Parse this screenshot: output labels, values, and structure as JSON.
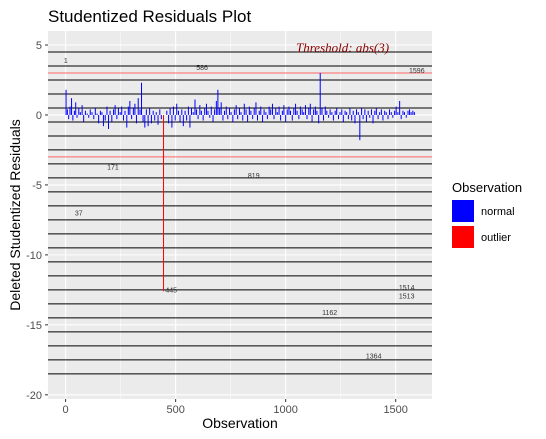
{
  "chart_data": {
    "type": "bar",
    "title": "Studentized Residuals Plot",
    "xlabel": "Observation",
    "ylabel": "Deleted Studentized Residuals",
    "xlim": [
      -80,
      1665
    ],
    "ylim": [
      -20.3,
      6.0
    ],
    "xticks": [
      0,
      500,
      1000,
      1500
    ],
    "yticks": [
      -20,
      -15,
      -10,
      -5,
      0,
      5
    ],
    "grid": true,
    "threshold": {
      "label": "Threshold: abs(3)",
      "values": [
        3,
        -3
      ],
      "color": "#ff6666"
    },
    "hlines": [
      4.5,
      3.5,
      2.5,
      1.5,
      0.5,
      -0.5,
      -1.5,
      -2.5,
      -3.5,
      -4.5,
      -5.5,
      -6.5,
      -7.5,
      -8.5,
      -9.5,
      -10.5,
      -11.5,
      -12.5,
      -13.5,
      -14.5,
      -15.5,
      -16.5,
      -17.5,
      -18.5
    ],
    "series": [
      {
        "name": "normal",
        "color": "#0000ff",
        "points": [
          [
            2,
            1.8
          ],
          [
            8,
            0.4
          ],
          [
            14,
            -0.3
          ],
          [
            20,
            0.6
          ],
          [
            27,
            1.2
          ],
          [
            33,
            -0.4
          ],
          [
            40,
            0.3
          ],
          [
            46,
            0.9
          ],
          [
            52,
            -0.2
          ],
          [
            60,
            0.5
          ],
          [
            67,
            0.2
          ],
          [
            75,
            0.7
          ],
          [
            82,
            -0.5
          ],
          [
            90,
            0.3
          ],
          [
            98,
            0.1
          ],
          [
            105,
            -0.2
          ],
          [
            112,
            0.4
          ],
          [
            120,
            0.2
          ],
          [
            128,
            -0.3
          ],
          [
            135,
            0.5
          ],
          [
            143,
            0.1
          ],
          [
            150,
            -0.6
          ],
          [
            158,
            0.3
          ],
          [
            165,
            0.2
          ],
          [
            172,
            -0.8
          ],
          [
            180,
            -0.4
          ],
          [
            188,
            0.6
          ],
          [
            195,
            -1.0
          ],
          [
            202,
            0.3
          ],
          [
            210,
            -0.5
          ],
          [
            218,
            0.4
          ],
          [
            225,
            0.7
          ],
          [
            233,
            -0.3
          ],
          [
            240,
            0.5
          ],
          [
            248,
            0.2
          ],
          [
            255,
            0.6
          ],
          [
            263,
            -0.4
          ],
          [
            270,
            0.3
          ],
          [
            278,
            -0.9
          ],
          [
            285,
            0.6
          ],
          [
            292,
            1.0
          ],
          [
            300,
            -0.3
          ],
          [
            308,
            0.5
          ],
          [
            315,
            0.8
          ],
          [
            322,
            -0.6
          ],
          [
            330,
            1.2
          ],
          [
            338,
            0.4
          ],
          [
            345,
            2.3
          ],
          [
            352,
            -0.5
          ],
          [
            360,
            -0.9
          ],
          [
            367,
            0.4
          ],
          [
            375,
            -0.8
          ],
          [
            382,
            0.5
          ],
          [
            390,
            -0.6
          ],
          [
            398,
            0.3
          ],
          [
            405,
            -0.4
          ],
          [
            412,
            0.2
          ],
          [
            420,
            -0.7
          ],
          [
            428,
            0.4
          ],
          [
            435,
            -0.3
          ],
          [
            460,
            0.3
          ],
          [
            468,
            -0.6
          ],
          [
            475,
            0.5
          ],
          [
            483,
            -0.9
          ],
          [
            490,
            0.6
          ],
          [
            498,
            -0.4
          ],
          [
            505,
            0.8
          ],
          [
            513,
            0.3
          ],
          [
            520,
            -0.5
          ],
          [
            528,
            0.4
          ],
          [
            535,
            -0.8
          ],
          [
            543,
            0.3
          ],
          [
            550,
            -0.4
          ],
          [
            558,
            0.6
          ],
          [
            565,
            -0.9
          ],
          [
            572,
            0.5
          ],
          [
            580,
            0.2
          ],
          [
            588,
            1.1
          ],
          [
            595,
            0.4
          ],
          [
            602,
            -0.3
          ],
          [
            610,
            0.7
          ],
          [
            617,
            0.3
          ],
          [
            625,
            -0.4
          ],
          [
            632,
            0.5
          ],
          [
            640,
            0.8
          ],
          [
            647,
            0.3
          ],
          [
            655,
            -0.2
          ],
          [
            662,
            0.6
          ],
          [
            670,
            -0.5
          ],
          [
            677,
            0.4
          ],
          [
            685,
            1.0
          ],
          [
            692,
            1.8
          ],
          [
            700,
            0.5
          ],
          [
            707,
            0.9
          ],
          [
            715,
            -0.4
          ],
          [
            722,
            0.3
          ],
          [
            730,
            0.6
          ],
          [
            737,
            -0.3
          ],
          [
            745,
            0.5
          ],
          [
            752,
            0.2
          ],
          [
            760,
            -0.5
          ],
          [
            767,
            0.4
          ],
          [
            775,
            0.7
          ],
          [
            782,
            -0.3
          ],
          [
            790,
            0.5
          ],
          [
            797,
            0.2
          ],
          [
            805,
            -0.4
          ],
          [
            812,
            0.8
          ],
          [
            820,
            0.4
          ],
          [
            827,
            -0.5
          ],
          [
            835,
            0.6
          ],
          [
            842,
            0.3
          ],
          [
            850,
            -0.3
          ],
          [
            857,
            0.5
          ],
          [
            865,
            0.9
          ],
          [
            872,
            -0.4
          ],
          [
            880,
            0.3
          ],
          [
            887,
            0.6
          ],
          [
            895,
            -0.5
          ],
          [
            902,
            0.4
          ],
          [
            910,
            0.2
          ],
          [
            917,
            -0.3
          ],
          [
            925,
            0.6
          ],
          [
            932,
            0.4
          ],
          [
            940,
            0.8
          ],
          [
            947,
            -0.3
          ],
          [
            955,
            0.5
          ],
          [
            962,
            0.2
          ],
          [
            970,
            0.6
          ],
          [
            977,
            -0.4
          ],
          [
            985,
            0.3
          ],
          [
            992,
            0.7
          ],
          [
            1000,
            -0.5
          ],
          [
            1007,
            0.4
          ],
          [
            1015,
            0.6
          ],
          [
            1022,
            0.3
          ],
          [
            1030,
            -0.4
          ],
          [
            1037,
            0.5
          ],
          [
            1045,
            0.8
          ],
          [
            1052,
            0.3
          ],
          [
            1060,
            -0.3
          ],
          [
            1067,
            0.6
          ],
          [
            1075,
            0.4
          ],
          [
            1082,
            0.2
          ],
          [
            1090,
            0.7
          ],
          [
            1097,
            -0.3
          ],
          [
            1105,
            0.5
          ],
          [
            1112,
            0.8
          ],
          [
            1120,
            -0.5
          ],
          [
            1127,
            0.4
          ],
          [
            1135,
            0.6
          ],
          [
            1142,
            0.3
          ],
          [
            1150,
            -0.6
          ],
          [
            1157,
            3.0
          ],
          [
            1165,
            0.5
          ],
          [
            1172,
            -0.4
          ],
          [
            1180,
            0.6
          ],
          [
            1187,
            0.3
          ],
          [
            1195,
            -0.2
          ],
          [
            1202,
            0.4
          ],
          [
            1210,
            0.2
          ],
          [
            1217,
            -0.4
          ],
          [
            1225,
            0.3
          ],
          [
            1232,
            0.5
          ],
          [
            1240,
            -0.3
          ],
          [
            1247,
            0.2
          ],
          [
            1255,
            0.4
          ],
          [
            1262,
            -0.5
          ],
          [
            1270,
            0.3
          ],
          [
            1277,
            0.2
          ],
          [
            1285,
            -0.3
          ],
          [
            1292,
            0.5
          ],
          [
            1300,
            -0.4
          ],
          [
            1307,
            0.3
          ],
          [
            1315,
            -0.6
          ],
          [
            1322,
            0.4
          ],
          [
            1330,
            0.2
          ],
          [
            1337,
            -1.8
          ],
          [
            1345,
            0.5
          ],
          [
            1352,
            -0.3
          ],
          [
            1360,
            0.4
          ],
          [
            1367,
            -0.5
          ],
          [
            1375,
            0.3
          ],
          [
            1382,
            -0.2
          ],
          [
            1390,
            0.4
          ],
          [
            1397,
            -0.6
          ],
          [
            1405,
            0.3
          ],
          [
            1412,
            0.5
          ],
          [
            1420,
            -0.3
          ],
          [
            1427,
            0.2
          ],
          [
            1435,
            0.4
          ],
          [
            1442,
            -0.4
          ],
          [
            1450,
            0.3
          ],
          [
            1457,
            0.2
          ],
          [
            1465,
            -0.3
          ],
          [
            1472,
            0.4
          ],
          [
            1480,
            0.2
          ],
          [
            1487,
            -0.2
          ],
          [
            1495,
            0.3
          ],
          [
            1502,
            0.6
          ],
          [
            1510,
            0.2
          ],
          [
            1518,
            1.0
          ],
          [
            1525,
            -0.3
          ],
          [
            1533,
            0.3
          ],
          [
            1540,
            0.2
          ],
          [
            1548,
            -0.2
          ],
          [
            1556,
            0.3
          ],
          [
            1563,
            0.4
          ],
          [
            1570,
            0.2
          ],
          [
            1578,
            0.3
          ],
          [
            1585,
            0.2
          ]
        ]
      },
      {
        "name": "outlier",
        "color": "#ff0000",
        "points": [
          [
            445,
            -12.6
          ]
        ]
      }
    ],
    "annotations": [
      {
        "label": "1",
        "x": 1,
        "y": 3.7
      },
      {
        "label": "586",
        "x": 620,
        "y": 3.2
      },
      {
        "label": "1596",
        "x": 1596,
        "y": 3.0
      },
      {
        "label": "171",
        "x": 215,
        "y": -3.9
      },
      {
        "label": "819",
        "x": 855,
        "y": -4.5
      },
      {
        "label": "37",
        "x": 60,
        "y": -7.2
      },
      {
        "label": "445",
        "x": 480,
        "y": -12.7
      },
      {
        "label": "1514",
        "x": 1550,
        "y": -12.5
      },
      {
        "label": "1513",
        "x": 1550,
        "y": -13.1
      },
      {
        "label": "1162",
        "x": 1200,
        "y": -14.3
      },
      {
        "label": "1364",
        "x": 1400,
        "y": -17.4
      }
    ],
    "legend": {
      "title": "Observation",
      "position": "right",
      "entries": [
        {
          "label": "normal",
          "color": "#0000ff"
        },
        {
          "label": "outlier",
          "color": "#ff0000"
        }
      ]
    }
  }
}
